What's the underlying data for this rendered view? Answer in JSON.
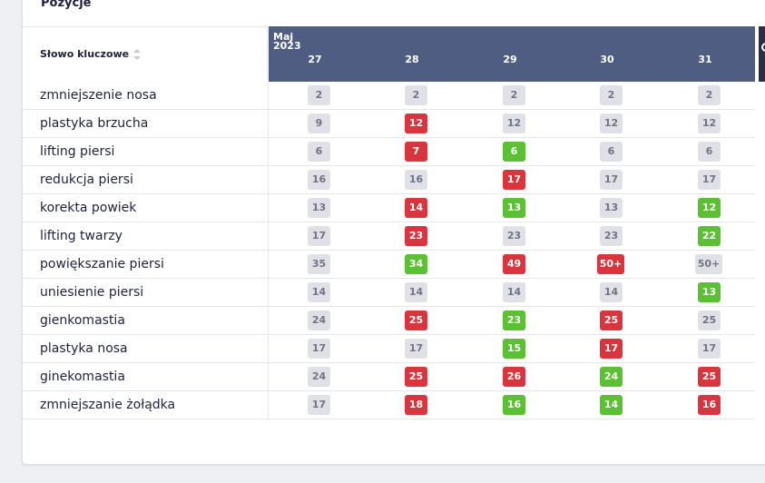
{
  "section": {
    "title": "Pozycje"
  },
  "table": {
    "keyword_header": "Słowo kluczowe",
    "month_label": "Maj",
    "year_label": "2023",
    "days": [
      "27",
      "28",
      "29",
      "30",
      "31"
    ],
    "rows": [
      {
        "keyword": "zmniejszenie nosa",
        "cells": [
          {
            "v": "2",
            "s": "neutral"
          },
          {
            "v": "2",
            "s": "neutral"
          },
          {
            "v": "2",
            "s": "neutral"
          },
          {
            "v": "2",
            "s": "neutral"
          },
          {
            "v": "2",
            "s": "neutral"
          }
        ]
      },
      {
        "keyword": "plastyka brzucha",
        "cells": [
          {
            "v": "9",
            "s": "neutral"
          },
          {
            "v": "12",
            "s": "red"
          },
          {
            "v": "12",
            "s": "neutral"
          },
          {
            "v": "12",
            "s": "neutral"
          },
          {
            "v": "12",
            "s": "neutral"
          }
        ]
      },
      {
        "keyword": "lifting piersi",
        "cells": [
          {
            "v": "6",
            "s": "neutral"
          },
          {
            "v": "7",
            "s": "red"
          },
          {
            "v": "6",
            "s": "green"
          },
          {
            "v": "6",
            "s": "neutral"
          },
          {
            "v": "6",
            "s": "neutral"
          }
        ]
      },
      {
        "keyword": "redukcja piersi",
        "cells": [
          {
            "v": "16",
            "s": "neutral"
          },
          {
            "v": "16",
            "s": "neutral"
          },
          {
            "v": "17",
            "s": "red"
          },
          {
            "v": "17",
            "s": "neutral"
          },
          {
            "v": "17",
            "s": "neutral"
          }
        ]
      },
      {
        "keyword": "korekta powiek",
        "cells": [
          {
            "v": "13",
            "s": "neutral"
          },
          {
            "v": "14",
            "s": "red"
          },
          {
            "v": "13",
            "s": "green"
          },
          {
            "v": "13",
            "s": "neutral"
          },
          {
            "v": "12",
            "s": "green"
          }
        ]
      },
      {
        "keyword": "lifting twarzy",
        "cells": [
          {
            "v": "17",
            "s": "neutral"
          },
          {
            "v": "23",
            "s": "red"
          },
          {
            "v": "23",
            "s": "neutral"
          },
          {
            "v": "23",
            "s": "neutral"
          },
          {
            "v": "22",
            "s": "green"
          }
        ]
      },
      {
        "keyword": "powiększanie piersi",
        "cells": [
          {
            "v": "35",
            "s": "neutral"
          },
          {
            "v": "34",
            "s": "green"
          },
          {
            "v": "49",
            "s": "red"
          },
          {
            "v": "50+",
            "s": "red"
          },
          {
            "v": "50+",
            "s": "neutral"
          }
        ]
      },
      {
        "keyword": "uniesienie piersi",
        "cells": [
          {
            "v": "14",
            "s": "neutral"
          },
          {
            "v": "14",
            "s": "neutral"
          },
          {
            "v": "14",
            "s": "neutral"
          },
          {
            "v": "14",
            "s": "neutral"
          },
          {
            "v": "13",
            "s": "green"
          }
        ]
      },
      {
        "keyword": "gienkomastia",
        "cells": [
          {
            "v": "24",
            "s": "neutral"
          },
          {
            "v": "25",
            "s": "red"
          },
          {
            "v": "23",
            "s": "green"
          },
          {
            "v": "25",
            "s": "red"
          },
          {
            "v": "25",
            "s": "neutral"
          }
        ]
      },
      {
        "keyword": "plastyka nosa",
        "cells": [
          {
            "v": "17",
            "s": "neutral"
          },
          {
            "v": "17",
            "s": "neutral"
          },
          {
            "v": "15",
            "s": "green"
          },
          {
            "v": "17",
            "s": "red"
          },
          {
            "v": "17",
            "s": "neutral"
          }
        ]
      },
      {
        "keyword": "ginekomastia",
        "cells": [
          {
            "v": "24",
            "s": "neutral"
          },
          {
            "v": "25",
            "s": "red"
          },
          {
            "v": "26",
            "s": "red"
          },
          {
            "v": "24",
            "s": "green"
          },
          {
            "v": "25",
            "s": "red"
          }
        ]
      },
      {
        "keyword": "zmniejszanie żołądka",
        "cells": [
          {
            "v": "17",
            "s": "neutral"
          },
          {
            "v": "18",
            "s": "red"
          },
          {
            "v": "16",
            "s": "green"
          },
          {
            "v": "14",
            "s": "green"
          },
          {
            "v": "16",
            "s": "red"
          }
        ]
      }
    ]
  },
  "colors": {
    "header_bg": "#4f5d83",
    "red": "#d9353e",
    "green": "#5cc034",
    "neutral": "#dfe1e6"
  },
  "icons": {
    "sort": "sort-icon",
    "next": "next-page-icon"
  }
}
